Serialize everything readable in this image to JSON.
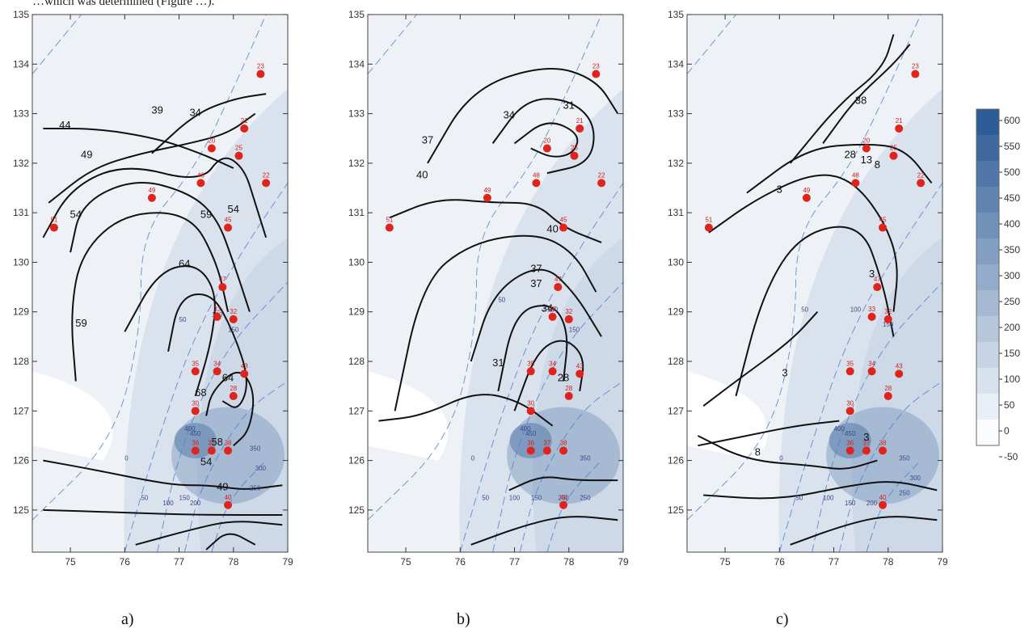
{
  "header": {
    "text": "…which was determined (Figure …)."
  },
  "axes": {
    "x_ticks": [
      "75",
      "76",
      "77",
      "78",
      "79"
    ],
    "y_ticks": [
      "125",
      "126",
      "127",
      "128",
      "129",
      "130",
      "131",
      "132",
      "133",
      "134",
      "135"
    ]
  },
  "legend": {
    "values": [
      "600",
      "550",
      "500",
      "450",
      "400",
      "350",
      "300",
      "250",
      "200",
      "150",
      "100",
      "50",
      "0",
      "-50"
    ]
  },
  "colors": {
    "fill_light": "#eef2f7",
    "fill_mid": "#c9d6e6",
    "fill_dark": "#5e80ad",
    "contour": "#111111",
    "iso": "#4d7fd0",
    "station": "#e0241b"
  },
  "panels": [
    {
      "letter": "a)",
      "stations": [
        "23",
        "21",
        "20",
        "25",
        "22",
        "48",
        "49",
        "51",
        "45",
        "47",
        "33",
        "32",
        "35",
        "34",
        "43",
        "30",
        "28",
        "36",
        "37",
        "38",
        "40"
      ],
      "contour_labels": [
        "44",
        "39",
        "34",
        "49",
        "54",
        "59",
        "64",
        "59",
        "54",
        "64",
        "68",
        "58",
        "54",
        "49"
      ],
      "blue_labels": [
        "50",
        "100",
        "150",
        "400",
        "450",
        "350",
        "300",
        "250",
        "0",
        "50",
        "100",
        "150",
        "200"
      ]
    },
    {
      "letter": "b)",
      "stations": [
        "23",
        "21",
        "20",
        "25",
        "22",
        "48",
        "49",
        "51",
        "45",
        "47",
        "33",
        "32",
        "35",
        "34",
        "43",
        "30",
        "28",
        "36",
        "37",
        "38",
        "40"
      ],
      "contour_labels": [
        "37",
        "34",
        "31",
        "40",
        "40",
        "37",
        "37",
        "34",
        "31",
        "28"
      ],
      "blue_labels": [
        "50",
        "100",
        "150",
        "400",
        "450",
        "350",
        "250",
        "0",
        "50",
        "100",
        "150",
        "200"
      ]
    },
    {
      "letter": "c)",
      "stations": [
        "23",
        "21",
        "20",
        "25",
        "22",
        "48",
        "49",
        "51",
        "45",
        "47",
        "33",
        "32",
        "35",
        "34",
        "43",
        "30",
        "28",
        "36",
        "37",
        "38",
        "40"
      ],
      "contour_labels": [
        "38",
        "28",
        "13",
        "8",
        "3",
        "3",
        "3",
        "8",
        "3"
      ],
      "blue_labels": [
        "50",
        "100",
        "150",
        "400",
        "450",
        "350",
        "300",
        "250",
        "0",
        "50",
        "100",
        "150",
        "200"
      ]
    }
  ]
}
